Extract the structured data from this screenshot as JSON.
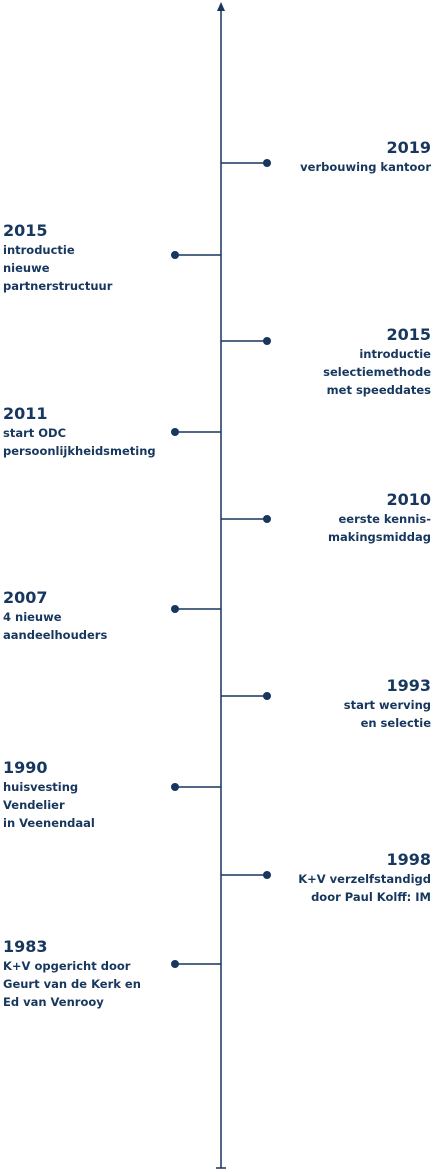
{
  "events": [
    {
      "year": "2019",
      "lines": [
        "verbouwing kantoor"
      ]
    },
    {
      "year": "2015",
      "lines": [
        "introductie",
        "nieuwe",
        "partnerstructuur"
      ]
    },
    {
      "year": "2015",
      "lines": [
        "introductie",
        "selectiemethode",
        "met speeddates"
      ]
    },
    {
      "year": "2011",
      "lines": [
        "start ODC",
        "persoonlijkheidsmeting"
      ]
    },
    {
      "year": "2010",
      "lines": [
        "eerste kennis-",
        "makingsmiddag"
      ]
    },
    {
      "year": "2007",
      "lines": [
        "4 nieuwe",
        "aandeelhouders"
      ]
    },
    {
      "year": "1993",
      "lines": [
        "start werving",
        "en selectie"
      ]
    },
    {
      "year": "1990",
      "lines": [
        "huisvesting",
        "Vendelier",
        "in Veenendaal"
      ]
    },
    {
      "year": "1998",
      "lines": [
        "K+V verzelfstandigd",
        "door Paul Kolff: IM"
      ]
    },
    {
      "year": "1983",
      "lines": [
        "K+V opgericht door",
        "Geurt van de Kerk en",
        "Ed van Venrooy"
      ]
    }
  ]
}
